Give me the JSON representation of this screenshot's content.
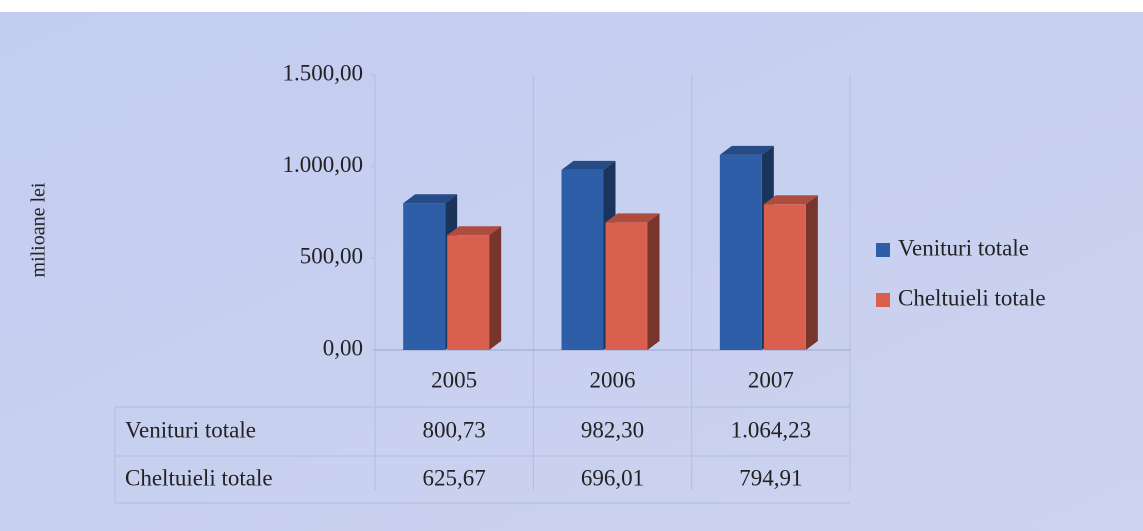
{
  "chart_data": {
    "type": "bar",
    "y_axis_label": "milioane lei",
    "categories": [
      "2005",
      "2006",
      "2007"
    ],
    "series": [
      {
        "name": "Venituri totale",
        "color": "#2f5ea8",
        "values": [
          800.73,
          982.3,
          1064.23
        ],
        "value_labels": [
          "800,73",
          "982,30",
          "1.064,23"
        ]
      },
      {
        "name": "Cheltuieli totale",
        "color": "#d9604f",
        "values": [
          625.67,
          696.01,
          794.91
        ],
        "value_labels": [
          "625,67",
          "696,01",
          "794,91"
        ]
      }
    ],
    "ylim": [
      0,
      1500
    ],
    "yticks": [
      {
        "value": 0,
        "label": "0,00"
      },
      {
        "value": 500,
        "label": "500,00"
      },
      {
        "value": 1000,
        "label": "1.000,00"
      },
      {
        "value": 1500,
        "label": "1.500,00"
      }
    ],
    "legend": "right",
    "data_table": true
  }
}
